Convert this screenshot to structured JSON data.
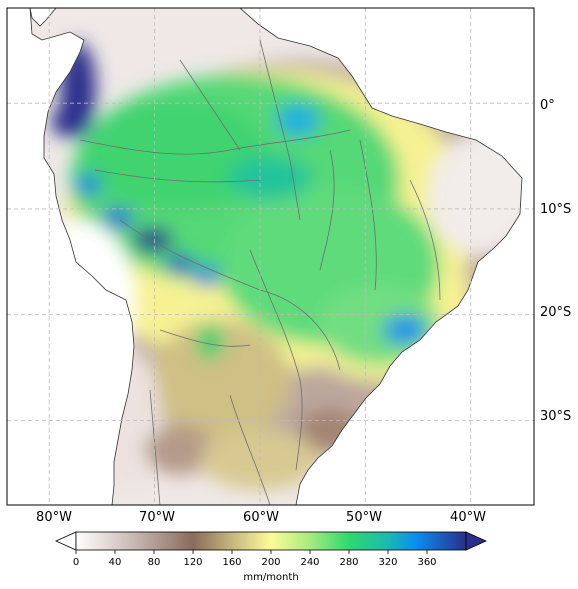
{
  "map": {
    "lon_ticks": [
      "80°W",
      "70°W",
      "60°W",
      "50°W",
      "40°W"
    ],
    "lat_ticks": [
      "0°",
      "10°S",
      "20°S",
      "30°S"
    ],
    "lon_range": [
      -84,
      -34
    ],
    "lat_range": [
      -38,
      9
    ],
    "gridlines": true,
    "legend": "bottom"
  },
  "colorbar": {
    "ticks": [
      "0",
      "40",
      "80",
      "120",
      "160",
      "200",
      "240",
      "280",
      "320",
      "360"
    ],
    "min": 0,
    "max": 400,
    "units": "mm/month",
    "colormap": "terrain_r",
    "colors": [
      "#ffffff",
      "#8a6b5c",
      "#fdfb98",
      "#2ed86f",
      "#0a8ef2",
      "#2b2f8c"
    ]
  },
  "field_features": [
    {
      "name": "amazon-basin",
      "lon": -62,
      "lat": -5,
      "value": 260
    },
    {
      "name": "ecuador-coast",
      "lon": -78,
      "lat": 0,
      "value": 390
    },
    {
      "name": "bolivia-east-andes",
      "lon": -69,
      "lat": -13,
      "value": 380
    },
    {
      "name": "southeast-brazil",
      "lon": -45,
      "lat": -22,
      "value": 310
    },
    {
      "name": "northeast-brazil-dry",
      "lon": -40,
      "lat": -8,
      "value": 40
    }
  ]
}
